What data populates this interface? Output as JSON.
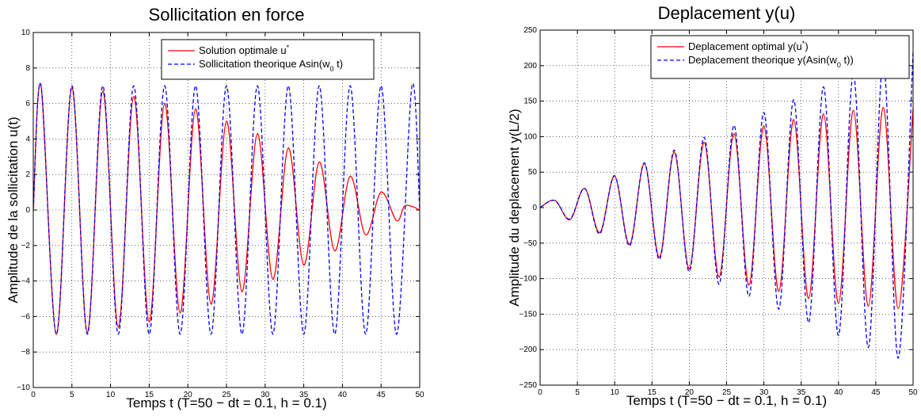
{
  "chart_data": [
    {
      "type": "line",
      "title": "Sollicitation en force",
      "xlabel": "Temps t (T=50 − dt = 0.1, h = 0.1)",
      "ylabel": "Amplitude de la sollicitation u(t)",
      "xlim": [
        0,
        50
      ],
      "ylim": [
        -10,
        10
      ],
      "xticks": [
        "0",
        "5",
        "10",
        "15",
        "20",
        "25",
        "30",
        "35",
        "40",
        "45",
        "50"
      ],
      "yticks": [
        "−10",
        "−8",
        "−6",
        "−4",
        "−2",
        "0",
        "2",
        "4",
        "6",
        "8",
        "10"
      ],
      "grid": true,
      "legend_position": "top-right",
      "series": [
        {
          "name": "Solution optimale u",
          "name_sup": "*",
          "color": "#ff0000",
          "style": "solid",
          "x": [
            0,
            1,
            3,
            5,
            7,
            9,
            11,
            13,
            15,
            17,
            19,
            21,
            23,
            25,
            27,
            29,
            31,
            33,
            35,
            37,
            39,
            41,
            43,
            45,
            47,
            48,
            49,
            50
          ],
          "y": [
            0,
            7.0,
            -7.0,
            6.9,
            -6.9,
            6.7,
            -6.6,
            6.4,
            -6.3,
            6.0,
            -5.8,
            5.7,
            -5.3,
            5.0,
            -4.6,
            4.3,
            -3.9,
            3.5,
            -3.1,
            2.7,
            -2.3,
            1.9,
            -1.4,
            1.0,
            -0.6,
            0.2,
            0.2,
            0
          ]
        },
        {
          "name": "Sollicitation theorique Asin(w",
          "name_sub": "0",
          "name_tail": " t)",
          "color": "#0000ff",
          "style": "dashed",
          "x": [
            0,
            1,
            3,
            5,
            7,
            9,
            11,
            13,
            15,
            17,
            19,
            21,
            23,
            25,
            27,
            29,
            31,
            33,
            35,
            37,
            39,
            41,
            43,
            45,
            47,
            49,
            50
          ],
          "y": [
            0,
            7,
            -7,
            7,
            -7,
            7,
            -7,
            7,
            -7,
            7,
            -7,
            7,
            -7,
            7,
            -7,
            7,
            -7,
            7,
            -7,
            7,
            -7,
            7,
            -7,
            7,
            -7,
            7,
            0
          ]
        }
      ]
    },
    {
      "type": "line",
      "title": "Deplacement y(u)",
      "xlabel": "Temps t (T=50 − dt = 0.1, h = 0.1)",
      "ylabel": "Amplitude du deplacement y(L/2)",
      "xlim": [
        0,
        50
      ],
      "ylim": [
        -250,
        250
      ],
      "xticks": [
        "0",
        "5",
        "10",
        "15",
        "20",
        "25",
        "30",
        "35",
        "40",
        "45",
        "50"
      ],
      "yticks": [
        "−250",
        "−200",
        "−150",
        "−100",
        "−50",
        "0",
        "50",
        "100",
        "150",
        "200",
        "250"
      ],
      "grid": true,
      "legend_position": "top-right",
      "series": [
        {
          "name": "Deplacement optimal y(u",
          "name_sup": "*",
          "name_tail": ")",
          "color": "#ff0000",
          "style": "solid",
          "x": [
            0,
            2,
            4,
            6,
            8,
            10,
            12,
            14,
            16,
            18,
            20,
            22,
            24,
            26,
            28,
            30,
            32,
            34,
            36,
            38,
            40,
            42,
            44,
            46,
            48,
            50
          ],
          "y": [
            0,
            10,
            -17,
            27,
            -35,
            44,
            -52,
            62,
            -70,
            78,
            -86,
            92,
            -98,
            104,
            -109,
            115,
            -118,
            124,
            -128,
            132,
            -135,
            137,
            -139,
            141,
            -142,
            140
          ]
        },
        {
          "name": "Deplacement theorique y(Asin(w",
          "name_sub": "0",
          "name_tail": " t))",
          "color": "#0000ff",
          "style": "dashed",
          "x": [
            0,
            2,
            4,
            6,
            8,
            10,
            12,
            14,
            16,
            18,
            20,
            22,
            24,
            26,
            28,
            30,
            32,
            34,
            36,
            38,
            40,
            42,
            44,
            46,
            48,
            50
          ],
          "y": [
            0,
            10,
            -16,
            27,
            -37,
            45,
            -54,
            63,
            -73,
            81,
            -90,
            99,
            -108,
            116,
            -125,
            134,
            -143,
            152,
            -162,
            170,
            -180,
            188,
            -197,
            206,
            -212,
            220
          ]
        }
      ]
    }
  ]
}
